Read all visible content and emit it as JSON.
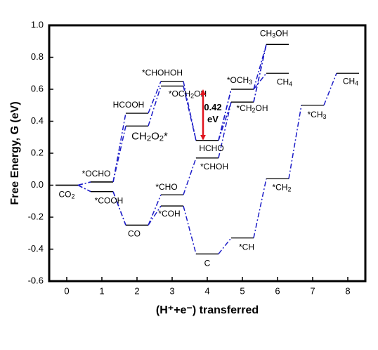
{
  "chart_data": {
    "type": "energy-levels",
    "x_label": "(H⁺+e⁻) transferred",
    "y_label": "Free Energy, G (eV)",
    "xlim": [
      -0.5,
      8.5
    ],
    "xticks": [
      0,
      1,
      2,
      3,
      4,
      5,
      6,
      7,
      8
    ],
    "ylim": [
      -0.6,
      1.0
    ],
    "yticks": [
      -0.6,
      -0.4,
      -0.2,
      {
        "value": 0,
        "label": "0.0"
      },
      0.2,
      0.4,
      0.6,
      0.8,
      {
        "value": 1,
        "label": "1.0"
      }
    ],
    "color": "#1c1cc8",
    "level_color": "#000000",
    "x": [
      0,
      1,
      2,
      3,
      4,
      5,
      6,
      7,
      8
    ],
    "series": [
      {
        "values": [
          0,
          0.02,
          0.45,
          0.65,
          0.28,
          0.6,
          0.88,
          null,
          null
        ],
        "labels": [
          "CO2",
          "*OCHO",
          "HCOOH",
          "*CHOHOH",
          "HCHO",
          "*OCH3",
          "CH3OH",
          null,
          null
        ]
      },
      {
        "values": [
          0,
          0.02,
          0.37,
          0.62,
          0.28,
          0.52,
          0.88,
          null,
          null
        ],
        "labels": [
          null,
          null,
          "CH2O2*",
          "*OCH2OH",
          null,
          "*CH2OH",
          null,
          null,
          null
        ]
      },
      {
        "values": [
          0,
          -0.04,
          -0.25,
          -0.06,
          0.17,
          0.52,
          0.88,
          null,
          null
        ],
        "labels": [
          null,
          "*COOH",
          "CO",
          "*CHO",
          "*CHOH",
          null,
          null,
          null,
          null
        ]
      },
      {
        "values": [
          0,
          -0.04,
          -0.25,
          -0.13,
          -0.43,
          -0.33,
          0.04,
          0.5,
          0.7
        ],
        "labels": [
          null,
          null,
          null,
          "*COH",
          "C",
          "*CH",
          "*CH2",
          "*CH3",
          "CH4"
        ]
      },
      {
        "values": [
          null,
          null,
          null,
          null,
          0.28,
          0.6,
          0.7,
          null,
          null
        ],
        "labels": [
          null,
          null,
          null,
          null,
          null,
          null,
          "CH4",
          null,
          null
        ]
      }
    ],
    "annotation": {
      "lines": [
        "0.42",
        "eV"
      ],
      "color": "#e0141e"
    }
  }
}
